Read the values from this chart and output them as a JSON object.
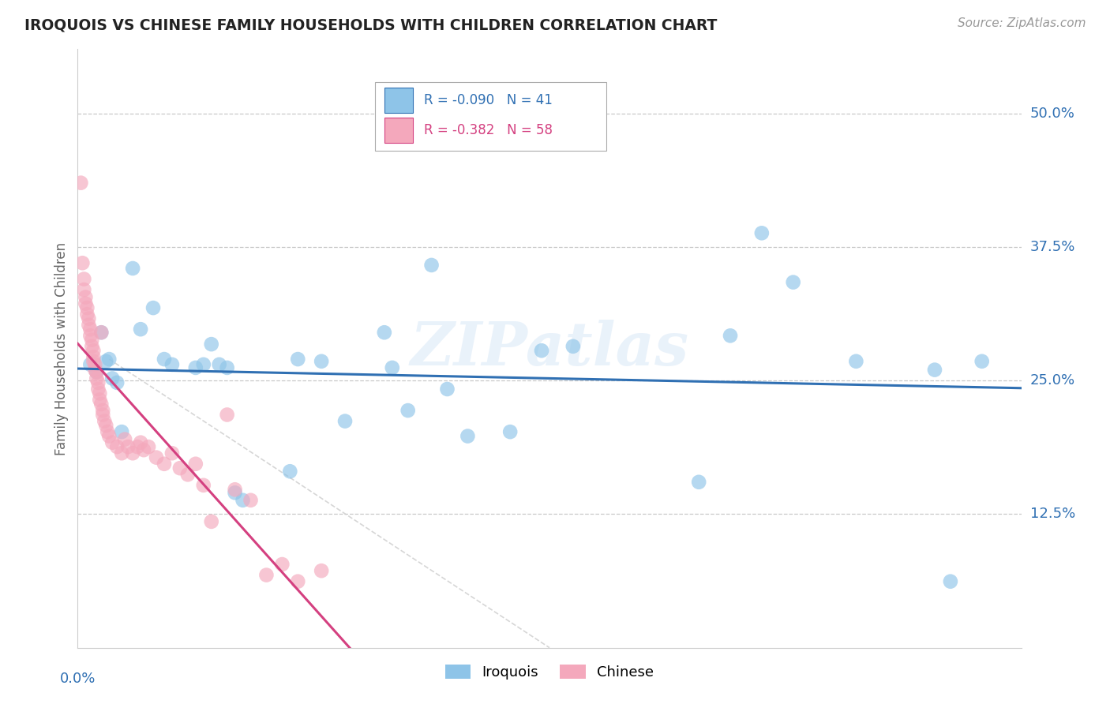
{
  "title": "IROQUOIS VS CHINESE FAMILY HOUSEHOLDS WITH CHILDREN CORRELATION CHART",
  "source": "Source: ZipAtlas.com",
  "ylabel": "Family Households with Children",
  "ytick_labels": [
    "50.0%",
    "37.5%",
    "25.0%",
    "12.5%"
  ],
  "ytick_values": [
    0.5,
    0.375,
    0.25,
    0.125
  ],
  "xlim": [
    0.0,
    0.6
  ],
  "ylim": [
    0.0,
    0.56
  ],
  "watermark": "ZIPatlas",
  "legend_iroquois_R": "-0.090",
  "legend_iroquois_N": "41",
  "legend_chinese_R": "-0.382",
  "legend_chinese_N": "58",
  "blue_color": "#8ec4e8",
  "pink_color": "#f4a8bc",
  "blue_line_color": "#3070b3",
  "pink_line_color": "#d44080",
  "diagonal_color": "#cccccc",
  "iroquois_x": [
    0.008,
    0.012,
    0.015,
    0.018,
    0.02,
    0.022,
    0.025,
    0.028,
    0.035,
    0.04,
    0.048,
    0.055,
    0.06,
    0.075,
    0.08,
    0.085,
    0.09,
    0.095,
    0.1,
    0.105,
    0.135,
    0.14,
    0.155,
    0.17,
    0.195,
    0.2,
    0.21,
    0.225,
    0.235,
    0.248,
    0.275,
    0.295,
    0.315,
    0.395,
    0.415,
    0.435,
    0.455,
    0.495,
    0.545,
    0.555,
    0.575
  ],
  "iroquois_y": [
    0.265,
    0.258,
    0.295,
    0.268,
    0.27,
    0.252,
    0.248,
    0.202,
    0.355,
    0.298,
    0.318,
    0.27,
    0.265,
    0.262,
    0.265,
    0.284,
    0.265,
    0.262,
    0.145,
    0.138,
    0.165,
    0.27,
    0.268,
    0.212,
    0.295,
    0.262,
    0.222,
    0.358,
    0.242,
    0.198,
    0.202,
    0.278,
    0.282,
    0.155,
    0.292,
    0.388,
    0.342,
    0.268,
    0.26,
    0.062,
    0.268
  ],
  "chinese_x": [
    0.002,
    0.003,
    0.004,
    0.004,
    0.005,
    0.005,
    0.006,
    0.006,
    0.007,
    0.007,
    0.008,
    0.008,
    0.009,
    0.009,
    0.01,
    0.01,
    0.01,
    0.011,
    0.011,
    0.012,
    0.012,
    0.013,
    0.013,
    0.014,
    0.014,
    0.015,
    0.015,
    0.016,
    0.016,
    0.017,
    0.018,
    0.019,
    0.02,
    0.022,
    0.025,
    0.028,
    0.03,
    0.032,
    0.035,
    0.038,
    0.04,
    0.042,
    0.045,
    0.05,
    0.055,
    0.06,
    0.065,
    0.07,
    0.075,
    0.08,
    0.085,
    0.095,
    0.1,
    0.11,
    0.12,
    0.13,
    0.14,
    0.155
  ],
  "chinese_y": [
    0.435,
    0.36,
    0.345,
    0.335,
    0.328,
    0.322,
    0.318,
    0.312,
    0.308,
    0.302,
    0.298,
    0.292,
    0.288,
    0.282,
    0.278,
    0.272,
    0.268,
    0.265,
    0.26,
    0.258,
    0.252,
    0.248,
    0.242,
    0.238,
    0.232,
    0.228,
    0.295,
    0.222,
    0.218,
    0.212,
    0.208,
    0.202,
    0.198,
    0.192,
    0.188,
    0.182,
    0.195,
    0.188,
    0.182,
    0.188,
    0.192,
    0.185,
    0.188,
    0.178,
    0.172,
    0.182,
    0.168,
    0.162,
    0.172,
    0.152,
    0.118,
    0.218,
    0.148,
    0.138,
    0.068,
    0.078,
    0.062,
    0.072
  ]
}
